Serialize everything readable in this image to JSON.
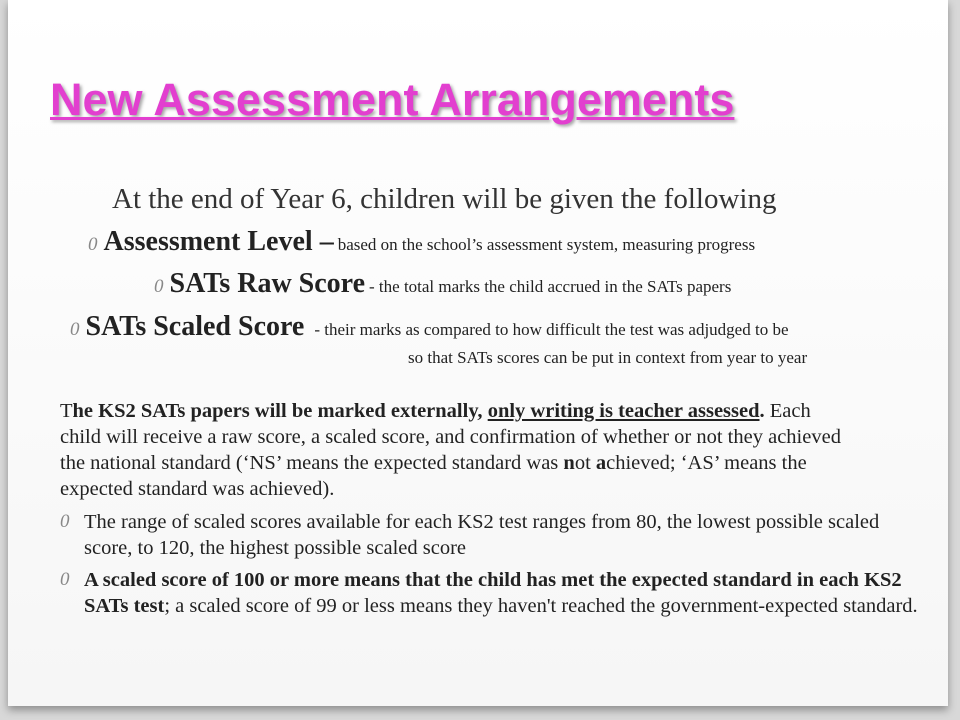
{
  "title": "New Assessment Arrangements",
  "intro": "At the end of Year 6, children will be given the following",
  "bullet_marker": "0",
  "items": [
    {
      "label": "Assessment Level –",
      "text": "based on the school’s assessment system, measuring progress"
    },
    {
      "label": "SATs Raw Score",
      "text": "- the total marks the child accrued in the SATs papers"
    },
    {
      "label": "SATs Scaled Score",
      "text": "- their marks as compared to how difficult the test was adjudged to be",
      "continuation": "so that SATs scores can be put in context from year to year"
    }
  ],
  "paragraph": [
    "T",
    "he KS2 SATs papers will be marked externally, ",
    "only writing is teacher assessed",
    ".",
    " Each child will receive a raw score, a scaled score, and confirmation of whether or not they achieved the national standard (‘NS’  means the expected standard was ",
    "n",
    "ot ",
    "a",
    "chieved; ‘AS’ means the expected standard was achieved)."
  ],
  "points": [
    {
      "text": "The range of scaled scores available for each KS2 test ranges from 80, the lowest possible scaled score, to 120, the highest possible scaled score"
    },
    {
      "bold": "A scaled score of 100 or more means that the child has met the expected standard in each KS2 SATs test",
      "text": "; a scaled score of 99 or less means they haven't reached the government-expected standard."
    }
  ]
}
